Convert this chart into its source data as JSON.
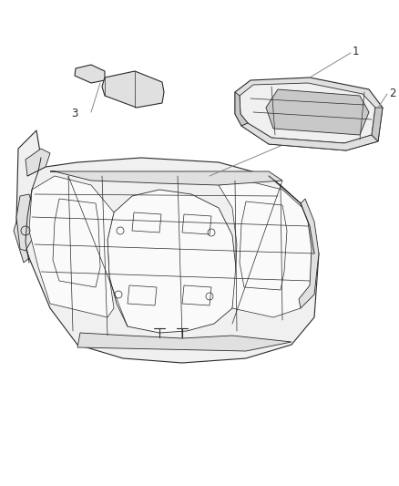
{
  "background_color": "#ffffff",
  "line_color": "#2a2a2a",
  "figure_width": 4.38,
  "figure_height": 5.33,
  "dpi": 100,
  "label_fontsize": 8.5,
  "label_color": "#2a2a2a",
  "leader_color": "#888888",
  "fill_light": "#f0f0f0",
  "fill_mid": "#e0e0e0",
  "fill_dark": "#c8c8c8",
  "fill_white": "#fafafa"
}
